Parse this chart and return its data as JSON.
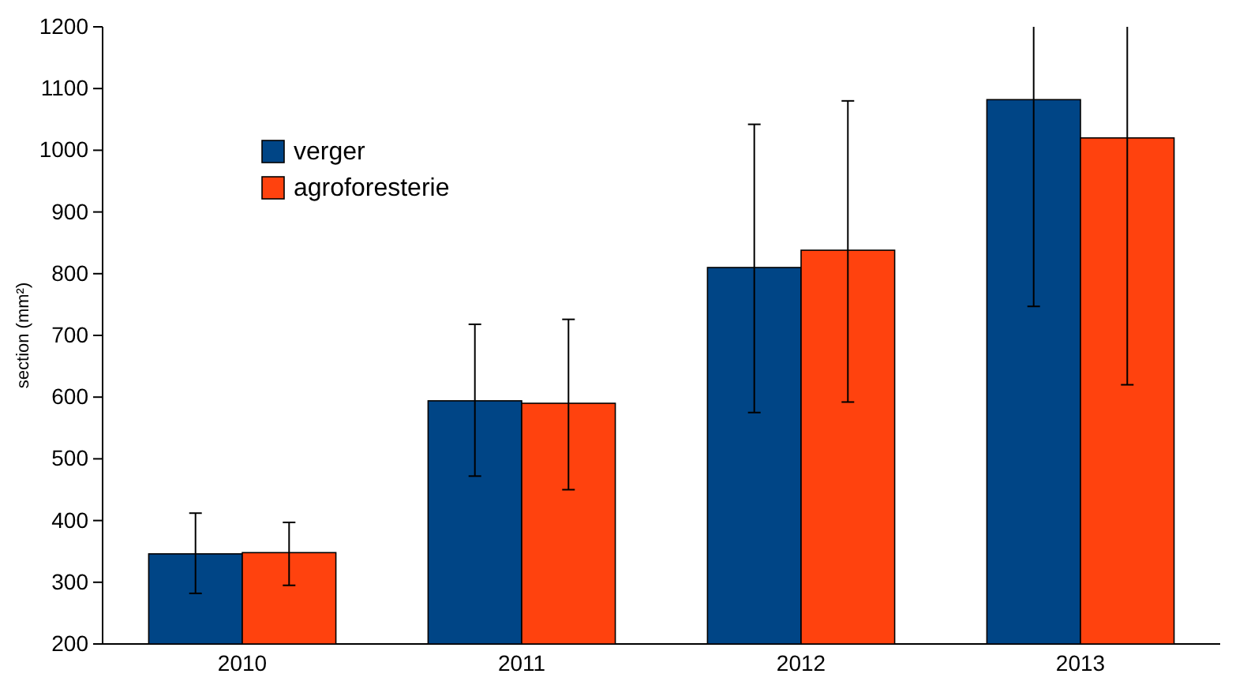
{
  "chart_data": {
    "type": "bar",
    "ylabel": "section (mm²)",
    "categories": [
      "2010",
      "2011",
      "2012",
      "2013"
    ],
    "series": [
      {
        "name": "verger",
        "color": "#004586",
        "values": [
          346,
          594,
          810,
          1082
        ],
        "errors": [
          [
            282,
            412
          ],
          [
            472,
            718
          ],
          [
            575,
            1042
          ],
          [
            747,
            1200
          ]
        ]
      },
      {
        "name": "agroforesterie",
        "color": "#ff420e",
        "values": [
          348,
          590,
          838,
          1020
        ],
        "errors": [
          [
            295,
            397
          ],
          [
            450,
            726
          ],
          [
            592,
            1080
          ],
          [
            620,
            1200
          ]
        ]
      }
    ],
    "ylim": [
      200,
      1200
    ],
    "yticks": [
      200,
      300,
      400,
      500,
      600,
      700,
      800,
      900,
      1000,
      1100,
      1200
    ],
    "grid": false,
    "legend": "top left"
  }
}
